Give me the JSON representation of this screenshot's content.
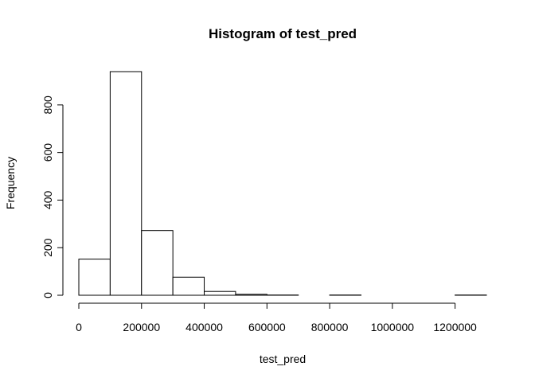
{
  "chart_data": {
    "type": "bar",
    "title": "Histogram of test_pred",
    "xlabel": "test_pred",
    "ylabel": "Frequency",
    "bins": [
      {
        "start": 0,
        "end": 100000,
        "count": 152
      },
      {
        "start": 100000,
        "end": 200000,
        "count": 940
      },
      {
        "start": 200000,
        "end": 300000,
        "count": 272
      },
      {
        "start": 300000,
        "end": 400000,
        "count": 76
      },
      {
        "start": 400000,
        "end": 500000,
        "count": 16
      },
      {
        "start": 500000,
        "end": 600000,
        "count": 4
      },
      {
        "start": 600000,
        "end": 700000,
        "count": 1
      },
      {
        "start": 700000,
        "end": 800000,
        "count": 0
      },
      {
        "start": 800000,
        "end": 900000,
        "count": 1
      },
      {
        "start": 900000,
        "end": 1000000,
        "count": 0
      },
      {
        "start": 1000000,
        "end": 1100000,
        "count": 0
      },
      {
        "start": 1100000,
        "end": 1200000,
        "count": 0
      },
      {
        "start": 1200000,
        "end": 1300000,
        "count": 1
      }
    ],
    "xlim": [
      0,
      1300000
    ],
    "ylim": [
      0,
      940
    ],
    "x_ticks": [
      {
        "value": 0,
        "label": "0"
      },
      {
        "value": 200000,
        "label": "200000"
      },
      {
        "value": 400000,
        "label": "400000"
      },
      {
        "value": 600000,
        "label": "600000"
      },
      {
        "value": 800000,
        "label": "800000"
      },
      {
        "value": 1000000,
        "label": "1000000"
      },
      {
        "value": 1200000,
        "label": "1200000"
      }
    ],
    "y_ticks": [
      {
        "value": 0,
        "label": "0"
      },
      {
        "value": 200,
        "label": "200"
      },
      {
        "value": 400,
        "label": "400"
      },
      {
        "value": 600,
        "label": "600"
      },
      {
        "value": 800,
        "label": "800"
      }
    ],
    "grid": false,
    "legend": "none"
  }
}
